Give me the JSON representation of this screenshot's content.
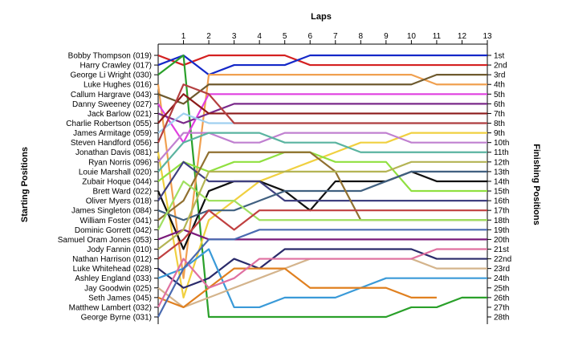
{
  "chart_data": {
    "type": "line",
    "title": "Laps",
    "ylabel_left": "Starting Positions",
    "ylabel_right": "Finishing Positions",
    "x": [
      0,
      1,
      2,
      3,
      4,
      5,
      6,
      7,
      8,
      9,
      10,
      11,
      12,
      13
    ],
    "xticks": [
      "1",
      "2",
      "3",
      "4",
      "5",
      "6",
      "7",
      "8",
      "9",
      "10",
      "11",
      "12",
      "13"
    ],
    "finishing_labels": [
      "1st",
      "2nd",
      "3rd",
      "4th",
      "5th",
      "6th",
      "7th",
      "8th",
      "9th",
      "10th",
      "11th",
      "12th",
      "13th",
      "14th",
      "15th",
      "16th",
      "17th",
      "18th",
      "19th",
      "20th",
      "21st",
      "22nd",
      "23rd",
      "24th",
      "25th",
      "26th",
      "27th",
      "28th"
    ],
    "ylim": [
      1,
      28
    ],
    "grid": false,
    "series": [
      {
        "name": "Bobby Thompson (019)",
        "color": "#d42020",
        "positions": [
          1,
          2,
          1,
          1,
          1,
          1,
          2,
          2,
          2,
          2,
          2,
          2,
          2,
          2
        ]
      },
      {
        "name": "Harry Crawley (017)",
        "color": "#1428c8",
        "positions": [
          2,
          1,
          3,
          2,
          2,
          2,
          1,
          1,
          1,
          1,
          1,
          1,
          1,
          1
        ]
      },
      {
        "name": "George Li Wright (030)",
        "color": "#2aa02a",
        "positions": [
          3,
          1,
          28,
          28,
          28,
          28,
          28,
          28,
          28,
          28,
          27,
          27,
          26,
          26
        ]
      },
      {
        "name": "Luke Hughes (016)",
        "color": "#f0a050",
        "positions": [
          4,
          24,
          3,
          3,
          3,
          3,
          3,
          3,
          3,
          3,
          3,
          4,
          4,
          4
        ]
      },
      {
        "name": "Callum Hargrave (043)",
        "color": "#6e5a2e",
        "positions": [
          5,
          6,
          4,
          4,
          4,
          4,
          4,
          4,
          4,
          4,
          4,
          3,
          3,
          3
        ]
      },
      {
        "name": "Danny Sweeney (027)",
        "color": "#e040e0",
        "positions": [
          6,
          10,
          5,
          5,
          5,
          5,
          5,
          5,
          5,
          5,
          5,
          5,
          5,
          5
        ]
      },
      {
        "name": "Jack Barlow (021)",
        "color": "#7a2a8a",
        "positions": [
          7,
          8,
          7,
          6,
          6,
          6,
          6,
          6,
          6,
          6,
          6,
          6,
          6,
          6
        ]
      },
      {
        "name": "Charlie Robertson (055)",
        "color": "#8c1a1a",
        "positions": [
          8,
          5,
          7,
          7,
          7,
          7,
          7,
          7,
          7,
          7,
          7,
          7,
          7,
          7
        ]
      },
      {
        "name": "James Armitage (059)",
        "color": "#a0d0f0",
        "positions": [
          9,
          7,
          8,
          8,
          8,
          8,
          8,
          8,
          8,
          8,
          8,
          8,
          8,
          8
        ]
      },
      {
        "name": "Steven Handford (056)",
        "color": "#b44040",
        "positions": [
          10,
          4,
          5,
          8,
          8,
          8,
          8,
          8,
          8,
          8,
          8,
          8,
          8,
          8
        ]
      },
      {
        "name": "Jonathan Davis (081)",
        "color": "#f0d040",
        "positions": [
          11,
          26,
          18,
          16,
          14,
          13,
          12,
          11,
          10,
          10,
          9,
          9,
          9,
          9
        ]
      },
      {
        "name": "Ryan Norris (096)",
        "color": "#c080d0",
        "positions": [
          12,
          9,
          9,
          10,
          10,
          9,
          9,
          9,
          9,
          9,
          10,
          10,
          10,
          10
        ]
      },
      {
        "name": "Louie Marshall (020)",
        "color": "#5ab4a0",
        "positions": [
          13,
          10,
          9,
          9,
          9,
          10,
          10,
          10,
          11,
          11,
          11,
          11,
          11,
          11
        ]
      },
      {
        "name": "Zubair Hoque (044)",
        "color": "#90e040",
        "positions": [
          14,
          12,
          13,
          12,
          12,
          11,
          11,
          12,
          12,
          12,
          15,
          15,
          15,
          15
        ]
      },
      {
        "name": "Brett Ward (022)",
        "color": "#101010",
        "positions": [
          15,
          21,
          15,
          14,
          14,
          15,
          17,
          14,
          14,
          14,
          13,
          14,
          14,
          14
        ]
      },
      {
        "name": "Oliver Myers (018)",
        "color": "#404080",
        "positions": [
          16,
          12,
          14,
          14,
          14,
          16,
          16,
          16,
          16,
          16,
          16,
          16,
          16,
          16
        ]
      },
      {
        "name": "James Singleton (084)",
        "color": "#406080",
        "positions": [
          17,
          18,
          17,
          17,
          16,
          15,
          15,
          15,
          15,
          14,
          13,
          13,
          13,
          13
        ]
      },
      {
        "name": "William Foster (041)",
        "color": "#907030",
        "positions": [
          18,
          16,
          11,
          11,
          11,
          11,
          11,
          13,
          18,
          18,
          18,
          18,
          18,
          18
        ]
      },
      {
        "name": "Dominic Gorrett (042)",
        "color": "#a0e060",
        "positions": [
          19,
          14,
          16,
          16,
          18,
          18,
          18,
          18,
          18,
          18,
          18,
          18,
          18,
          18
        ]
      },
      {
        "name": "Samuel Oram Jones (053)",
        "color": "#7a1a7a",
        "positions": [
          20,
          19,
          20,
          20,
          20,
          20,
          20,
          20,
          20,
          20,
          20,
          20,
          20,
          20
        ]
      },
      {
        "name": "Jody Fannin (010)",
        "color": "#b4b454",
        "positions": [
          21,
          19,
          13,
          13,
          13,
          13,
          13,
          13,
          13,
          13,
          12,
          12,
          12,
          12
        ]
      },
      {
        "name": "Nathan Harrison (012)",
        "color": "#c04040",
        "positions": [
          22,
          20,
          17,
          19,
          17,
          17,
          17,
          17,
          17,
          17,
          17,
          17,
          17,
          17
        ]
      },
      {
        "name": "Luke Whitehead (028)",
        "color": "#2a2a6a",
        "positions": [
          23,
          25,
          24,
          22,
          23,
          21,
          21,
          21,
          21,
          21,
          21,
          22,
          22,
          22
        ]
      },
      {
        "name": "Ashley England (033)",
        "color": "#3a9ad8",
        "positions": [
          24,
          23,
          21,
          27,
          27,
          26,
          26,
          26,
          25,
          24,
          24,
          24,
          24,
          24
        ]
      },
      {
        "name": "Jay Goodwin (025)",
        "color": "#d4b48c",
        "positions": [
          25,
          27,
          26,
          25,
          24,
          23,
          22,
          22,
          22,
          22,
          22,
          23,
          23,
          23
        ]
      },
      {
        "name": "Seth James (045)",
        "color": "#e08020",
        "positions": [
          26,
          27,
          25,
          23,
          23,
          23,
          25,
          25,
          25,
          25,
          26,
          26
        ]
      },
      {
        "name": "Matthew Lambert (032)",
        "color": "#e070a0",
        "positions": [
          27,
          22,
          25,
          24,
          22,
          22,
          22,
          22,
          22,
          22,
          22,
          21,
          21,
          21
        ]
      },
      {
        "name": "George Byrne (031)",
        "color": "#4a6ab0",
        "positions": [
          28,
          23,
          20,
          20,
          19,
          19,
          19,
          19,
          19,
          19,
          19,
          19,
          19,
          19
        ]
      }
    ]
  }
}
